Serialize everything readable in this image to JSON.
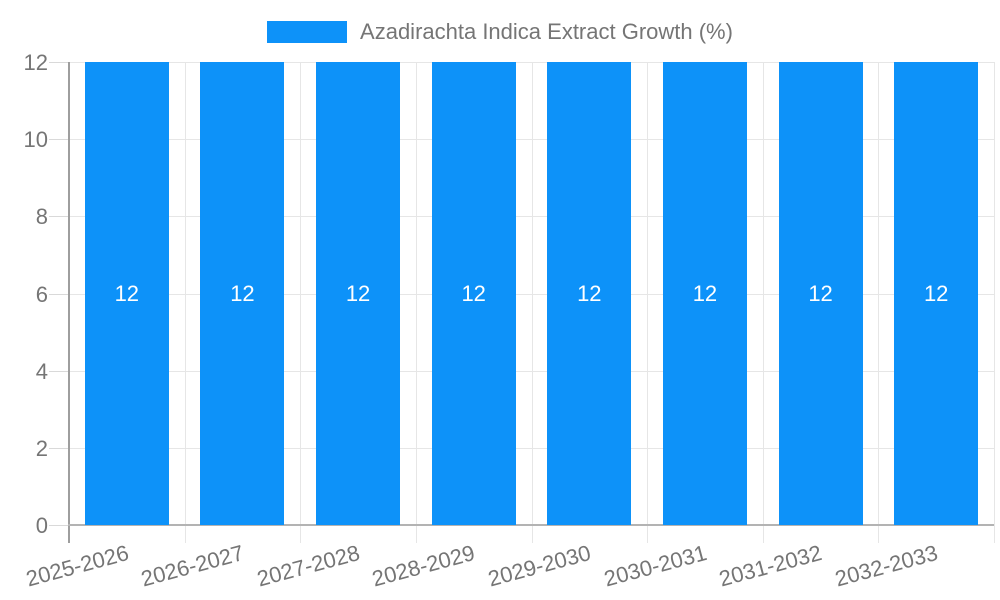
{
  "chart_data": {
    "type": "bar",
    "title": "",
    "legend_position": "top",
    "categories": [
      "2025-2026",
      "2026-2027",
      "2027-2028",
      "2028-2029",
      "2029-2030",
      "2030-2031",
      "2031-2032",
      "2032-2033"
    ],
    "series": [
      {
        "name": "Azadirachta Indica Extract Growth (%)",
        "color": "#0d92f9",
        "values": [
          12,
          12,
          12,
          12,
          12,
          12,
          12,
          12
        ]
      }
    ],
    "bar_value_labels": [
      "12",
      "12",
      "12",
      "12",
      "12",
      "12",
      "12",
      "12"
    ],
    "xlabel": "",
    "ylabel": "",
    "ylim": [
      0,
      12
    ],
    "yticks": [
      0,
      2,
      4,
      6,
      8,
      10,
      12
    ],
    "grid": true
  },
  "colors": {
    "bar": "#0d92f9",
    "axis_text": "#757575",
    "gridline": "#e6e6e6",
    "tick": "#d9d9d9",
    "y_axis_line": "#9e9e9e",
    "x_axis_line": "#b3b3b3",
    "bar_label_text": "#ffffff",
    "background": "#ffffff"
  }
}
